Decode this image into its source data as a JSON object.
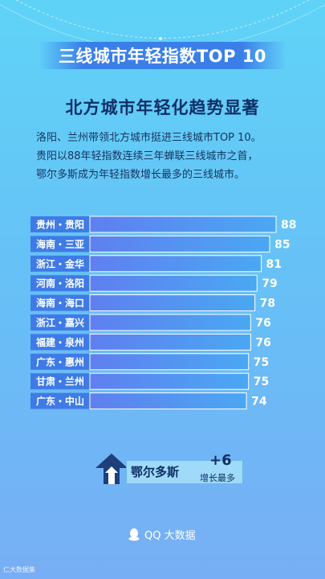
{
  "header": {
    "title": "三线城市年轻指数TOP 10",
    "headline": "北方城市年轻化趋势显著"
  },
  "description": [
    "洛阳、兰州带领北方城市挺进三线城市TOP 10。",
    "贵阳以88年轻指数连续三年蝉联三线城市之首，",
    "鄂尔多斯成为年轻指数增长最多的三线城市。"
  ],
  "chart_data": {
    "type": "bar",
    "orientation": "horizontal",
    "categories": [
      "贵州・贵阳",
      "海南・三亚",
      "浙江・金华",
      "河南・洛阳",
      "海南・海口",
      "浙江・嘉兴",
      "福建・泉州",
      "广东・惠州",
      "甘肃・兰州",
      "广东・中山"
    ],
    "values": [
      88,
      85,
      81,
      79,
      78,
      76,
      76,
      75,
      75,
      74
    ],
    "title": "三线城市年轻指数TOP 10",
    "bar_color_start": "#5f7ff0",
    "bar_color_end": "#4aa8f2"
  },
  "highlight": {
    "city": "鄂尔多斯",
    "change": "+6",
    "note": "增长最多",
    "icon": "up-arrow-icon"
  },
  "footer": {
    "brand": "QQ 大数据",
    "brand_icon": "qq-penguin-icon",
    "corner_text": "仁大数据集"
  },
  "colors": {
    "accent": "#3a7fe8",
    "text_dark": "#0f2f66",
    "label_bg": "#3f7be6"
  }
}
